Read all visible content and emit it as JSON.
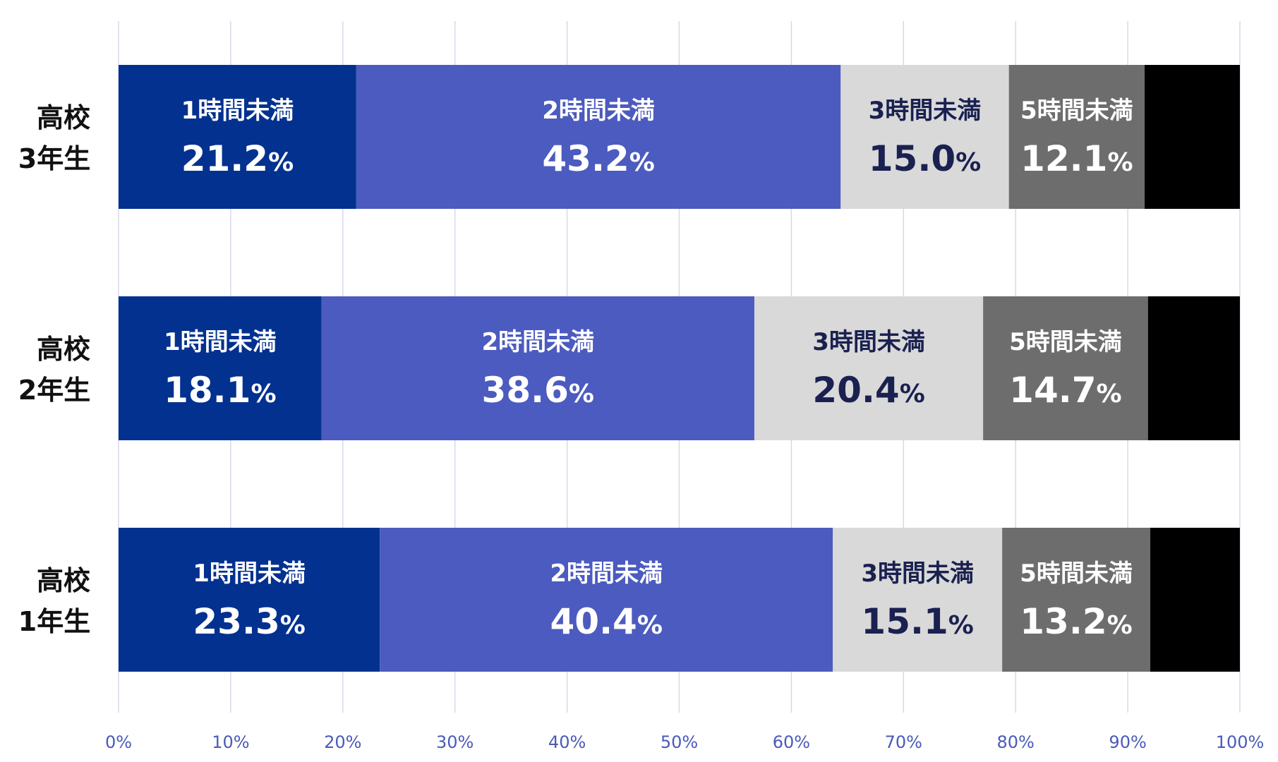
{
  "chart_data": {
    "type": "bar",
    "orientation": "horizontal",
    "stacked": true,
    "title": "",
    "xlabel": "",
    "ylabel": "",
    "xlim": [
      0,
      100
    ],
    "x_ticks": [
      "0%",
      "10%",
      "20%",
      "30%",
      "40%",
      "50%",
      "60%",
      "70%",
      "80%",
      "90%",
      "100%"
    ],
    "grid": true,
    "legend": "none",
    "categories": [
      {
        "line1": "高校",
        "line2": "3年生"
      },
      {
        "line1": "高校",
        "line2": "2年生"
      },
      {
        "line1": "高校",
        "line2": "1年生"
      }
    ],
    "series": [
      {
        "label": "1時間未満",
        "color": "#03318f",
        "text_color": "#ffffff",
        "values": [
          21.2,
          18.1,
          23.3
        ]
      },
      {
        "label": "2時間未満",
        "color": "#4c5bbf",
        "text_color": "#ffffff",
        "values": [
          43.2,
          38.6,
          40.4
        ]
      },
      {
        "label": "3時間未満",
        "color": "#d9d9d9",
        "text_color": "#1a2150",
        "values": [
          15.0,
          20.4,
          15.1
        ]
      },
      {
        "label": "5時間未満",
        "color": "#6d6d6d",
        "text_color": "#ffffff",
        "values": [
          12.1,
          14.7,
          13.2
        ]
      },
      {
        "label": "",
        "color": "#000000",
        "text_color": "#ffffff",
        "values": [
          8.5,
          8.2,
          8.0
        ]
      }
    ],
    "value_suffix": "%",
    "grid_color": "#d8d8ec"
  }
}
